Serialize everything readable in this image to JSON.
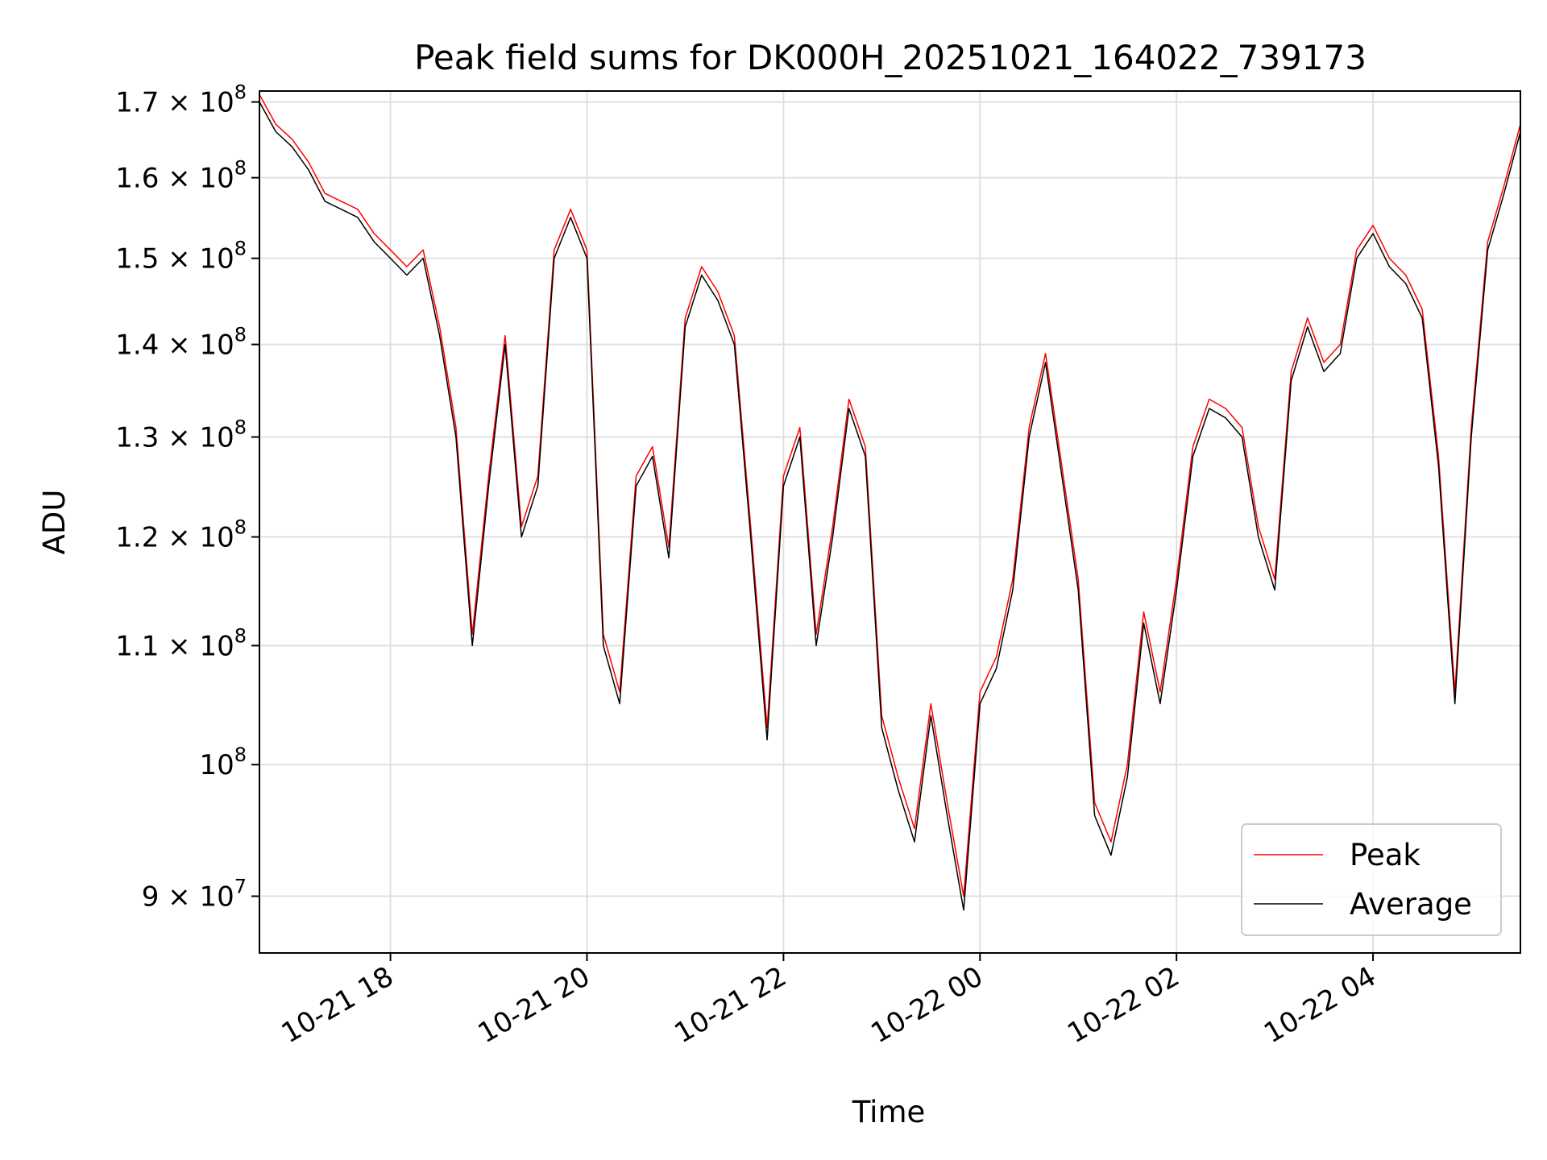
{
  "chart_data": {
    "type": "line",
    "title": "Peak field sums for DK000H_20251021_164022_739173",
    "xlabel": "Time",
    "ylabel": "ADU",
    "yscale": "log",
    "xlim": [
      "2025-10-21T16:40",
      "2025-10-22T05:30"
    ],
    "ylim": [
      86000000,
      171500000
    ],
    "grid": true,
    "legend_position": "lower-right",
    "x_ticks": [
      "10-21 18",
      "10-21 20",
      "10-21 22",
      "10-22 00",
      "10-22 02",
      "10-22 04"
    ],
    "x_tick_times": [
      "2025-10-21T18:00",
      "2025-10-21T20:00",
      "2025-10-21T22:00",
      "2025-10-22T00:00",
      "2025-10-22T02:00",
      "2025-10-22T04:00"
    ],
    "y_ticks": [
      {
        "value": 90000000,
        "mantissa": "9",
        "exp": "7"
      },
      {
        "value": 100000000,
        "mantissa": "",
        "exp": "8"
      },
      {
        "value": 110000000,
        "mantissa": "1.1",
        "exp": "8"
      },
      {
        "value": 120000000,
        "mantissa": "1.2",
        "exp": "8"
      },
      {
        "value": 130000000,
        "mantissa": "1.3",
        "exp": "8"
      },
      {
        "value": 140000000,
        "mantissa": "1.4",
        "exp": "8"
      },
      {
        "value": 150000000,
        "mantissa": "1.5",
        "exp": "8"
      },
      {
        "value": 160000000,
        "mantissa": "1.6",
        "exp": "8"
      },
      {
        "value": 170000000,
        "mantissa": "1.7",
        "exp": "8"
      }
    ],
    "series": [
      {
        "name": "Peak",
        "color": "#ff0000"
      },
      {
        "name": "Average",
        "color": "#000000"
      }
    ],
    "x": [
      "2025-10-21T16:40",
      "2025-10-21T16:50",
      "2025-10-21T17:00",
      "2025-10-21T17:10",
      "2025-10-21T17:20",
      "2025-10-21T17:30",
      "2025-10-21T17:40",
      "2025-10-21T17:50",
      "2025-10-21T18:00",
      "2025-10-21T18:10",
      "2025-10-21T18:20",
      "2025-10-21T18:30",
      "2025-10-21T18:40",
      "2025-10-21T18:50",
      "2025-10-21T19:00",
      "2025-10-21T19:10",
      "2025-10-21T19:20",
      "2025-10-21T19:30",
      "2025-10-21T19:40",
      "2025-10-21T19:50",
      "2025-10-21T20:00",
      "2025-10-21T20:10",
      "2025-10-21T20:20",
      "2025-10-21T20:30",
      "2025-10-21T20:40",
      "2025-10-21T20:50",
      "2025-10-21T21:00",
      "2025-10-21T21:10",
      "2025-10-21T21:20",
      "2025-10-21T21:30",
      "2025-10-21T21:40",
      "2025-10-21T21:50",
      "2025-10-21T22:00",
      "2025-10-21T22:10",
      "2025-10-21T22:20",
      "2025-10-21T22:30",
      "2025-10-21T22:40",
      "2025-10-21T22:50",
      "2025-10-21T23:00",
      "2025-10-21T23:10",
      "2025-10-21T23:20",
      "2025-10-21T23:30",
      "2025-10-21T23:40",
      "2025-10-21T23:50",
      "2025-10-22T00:00",
      "2025-10-22T00:10",
      "2025-10-22T00:20",
      "2025-10-22T00:30",
      "2025-10-22T00:40",
      "2025-10-22T00:50",
      "2025-10-22T01:00",
      "2025-10-22T01:10",
      "2025-10-22T01:20",
      "2025-10-22T01:30",
      "2025-10-22T01:40",
      "2025-10-22T01:50",
      "2025-10-22T02:00",
      "2025-10-22T02:10",
      "2025-10-22T02:20",
      "2025-10-22T02:30",
      "2025-10-22T02:40",
      "2025-10-22T02:50",
      "2025-10-22T03:00",
      "2025-10-22T03:10",
      "2025-10-22T03:20",
      "2025-10-22T03:30",
      "2025-10-22T03:40",
      "2025-10-22T03:50",
      "2025-10-22T04:00",
      "2025-10-22T04:10",
      "2025-10-22T04:20",
      "2025-10-22T04:30",
      "2025-10-22T04:40",
      "2025-10-22T04:50",
      "2025-10-22T05:00",
      "2025-10-22T05:10",
      "2025-10-22T05:20",
      "2025-10-22T05:30"
    ],
    "average": [
      170000000,
      166000000,
      164000000,
      161000000,
      157000000,
      156000000,
      155000000,
      152000000,
      150000000,
      148000000,
      150000000,
      141000000,
      130000000,
      110000000,
      125000000,
      140000000,
      120000000,
      125000000,
      150000000,
      155000000,
      150000000,
      110000000,
      105000000,
      125000000,
      128000000,
      118000000,
      142000000,
      148000000,
      145000000,
      140000000,
      120000000,
      102000000,
      125000000,
      130000000,
      110000000,
      120000000,
      133000000,
      128000000,
      103000000,
      98000000,
      94000000,
      104000000,
      96000000,
      89000000,
      105000000,
      108000000,
      115000000,
      130000000,
      138000000,
      126000000,
      115000000,
      96000000,
      93000000,
      99000000,
      112000000,
      105000000,
      115000000,
      128000000,
      133000000,
      132000000,
      130000000,
      120000000,
      115000000,
      136000000,
      142000000,
      137000000,
      139000000,
      150000000,
      153000000,
      149000000,
      147000000,
      143000000,
      127000000,
      105000000,
      130000000,
      151000000,
      158000000,
      166000000
    ],
    "peak": [
      171000000,
      167000000,
      165000000,
      162000000,
      158000000,
      157000000,
      156000000,
      153000000,
      151000000,
      149000000,
      151000000,
      142000000,
      131000000,
      111000000,
      126000000,
      141000000,
      121000000,
      126000000,
      151000000,
      156000000,
      151000000,
      111000000,
      106000000,
      126000000,
      129000000,
      119000000,
      143000000,
      149000000,
      146000000,
      141000000,
      121000000,
      103000000,
      126000000,
      131000000,
      111000000,
      121000000,
      134000000,
      129000000,
      104000000,
      99000000,
      95000000,
      105000000,
      97000000,
      90000000,
      106000000,
      109000000,
      116000000,
      131000000,
      139000000,
      127000000,
      116000000,
      97000000,
      94000000,
      100000000,
      113000000,
      106000000,
      116000000,
      129000000,
      134000000,
      133000000,
      131000000,
      121000000,
      116000000,
      137000000,
      143000000,
      138000000,
      140000000,
      151000000,
      154000000,
      150000000,
      148000000,
      144000000,
      128000000,
      106000000,
      131000000,
      152000000,
      159000000,
      167000000
    ]
  }
}
